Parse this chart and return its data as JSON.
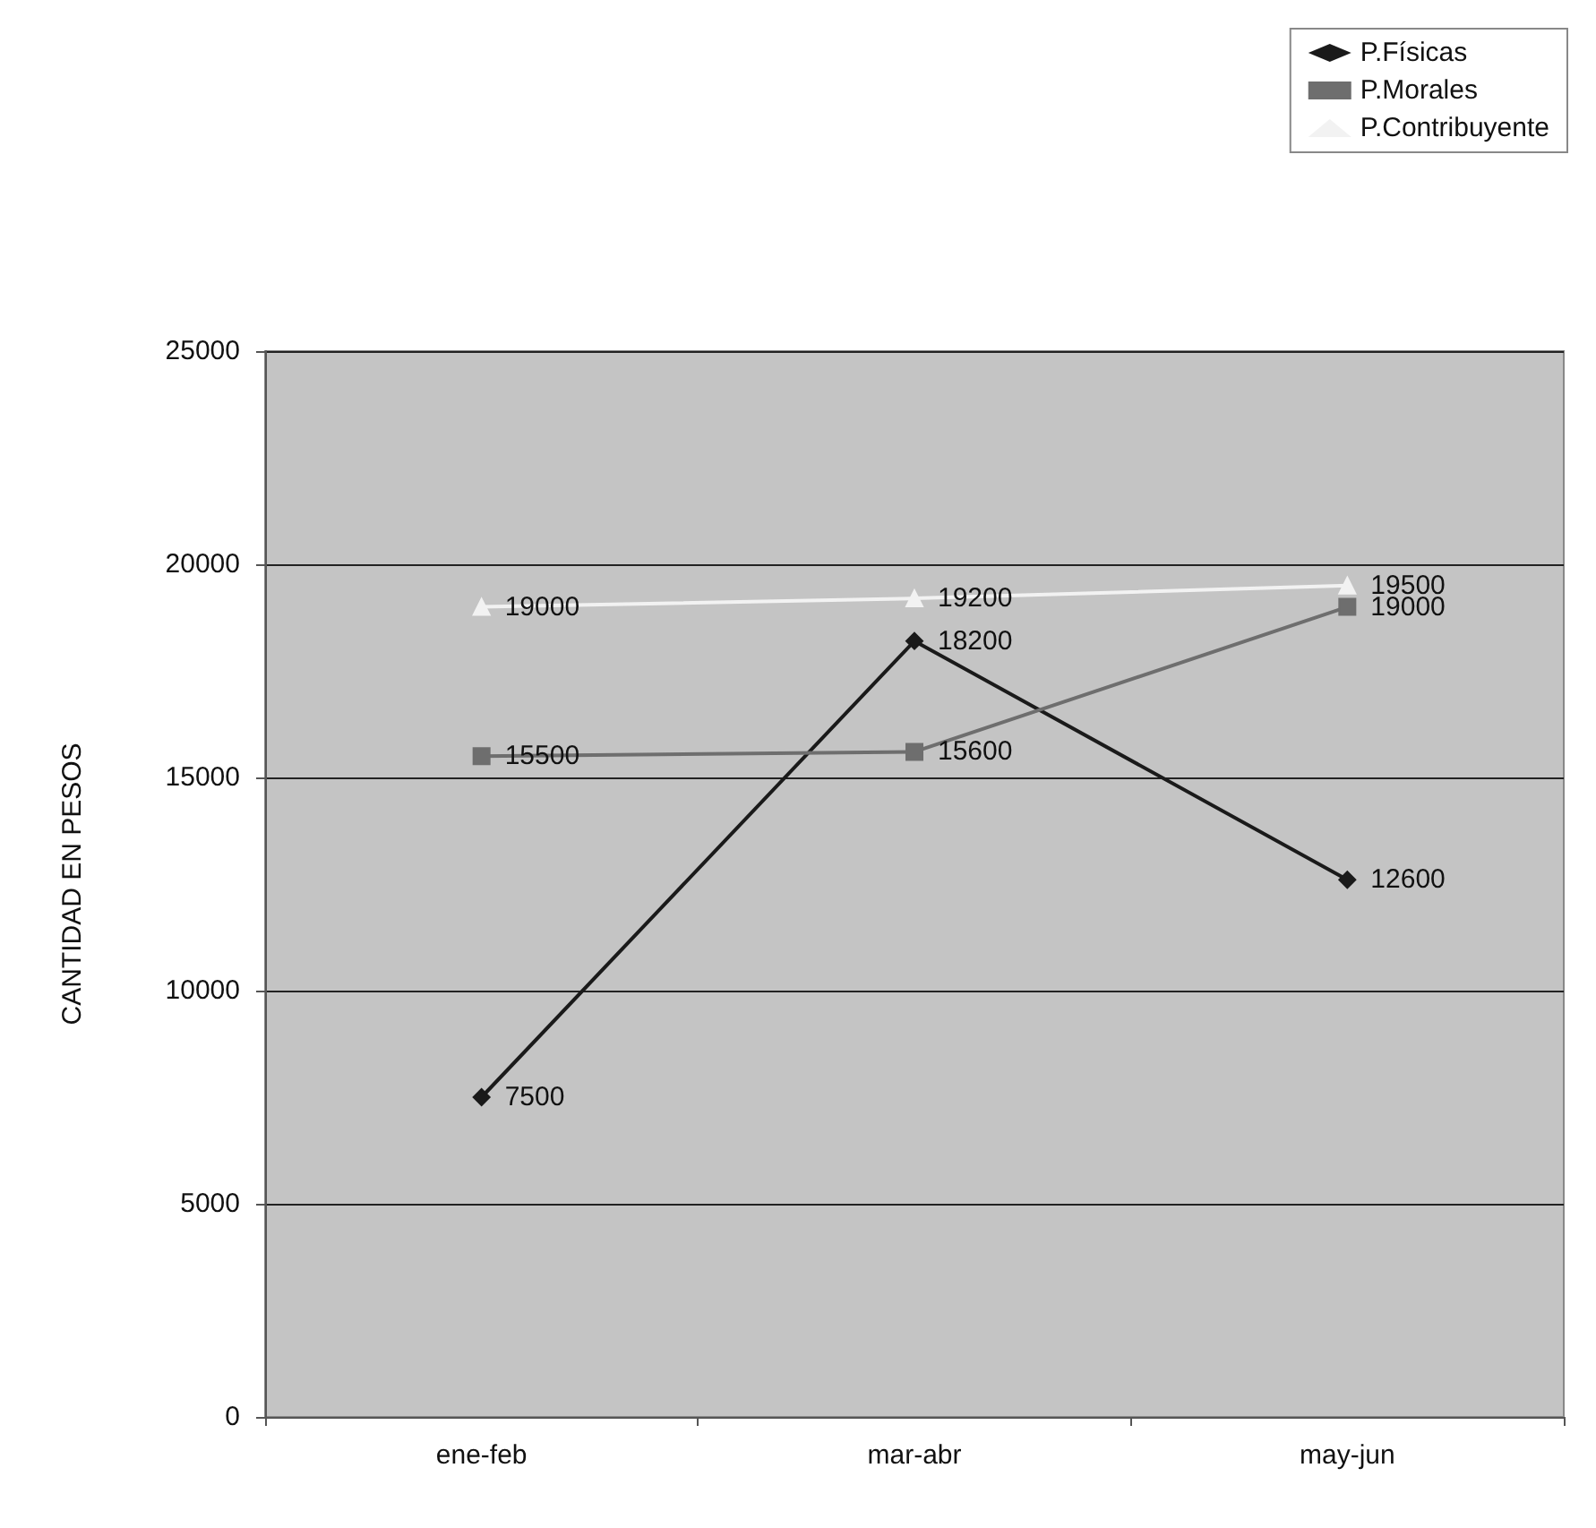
{
  "chart_data": {
    "type": "line",
    "ylabel": "CANTIDAD EN PESOS",
    "categories": [
      "ene-feb",
      "mar-abr",
      "may-jun"
    ],
    "series": [
      {
        "name": "P.Físicas",
        "color": "#1a1a1a",
        "marker": "diamond",
        "values": [
          7500,
          18200,
          12600
        ]
      },
      {
        "name": "P.Morales",
        "color": "#6e6e6e",
        "marker": "square",
        "values": [
          15500,
          15600,
          19000
        ]
      },
      {
        "name": "P.Contribuyente",
        "color": "#f2f2f2",
        "marker": "triangle",
        "values": [
          19000,
          19200,
          19500
        ]
      }
    ],
    "ylim": [
      0,
      25000
    ],
    "yticks": [
      0,
      5000,
      10000,
      15000,
      20000,
      25000
    ],
    "grid": "y",
    "legend": "top right",
    "data_labels": true,
    "line_style": "solid"
  }
}
